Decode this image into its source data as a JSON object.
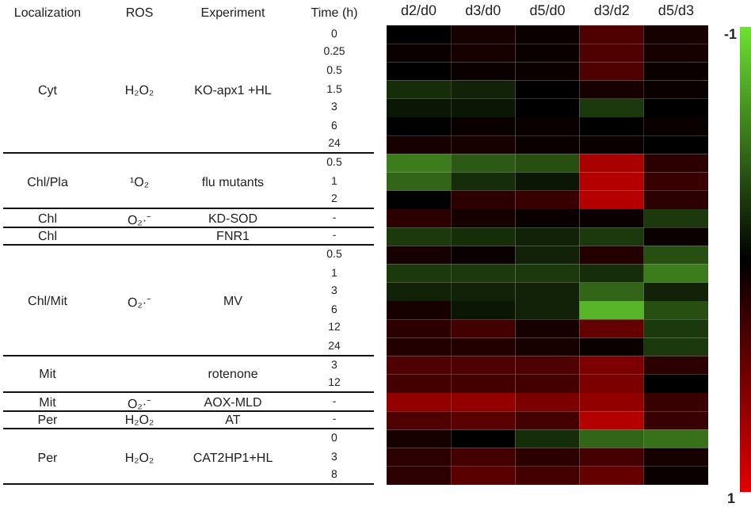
{
  "chart_data": {
    "type": "heatmap",
    "categories": [
      "d2/d0",
      "d3/d0",
      "d5/d0",
      "d3/d2",
      "d5/d3"
    ],
    "y_categories": [
      "0",
      "0.25",
      "0.5",
      "1.5",
      "3",
      "6",
      "24",
      "0.5",
      "1",
      "2",
      "-",
      "-",
      "0.5",
      "1",
      "3",
      "6",
      "12",
      "24",
      "3",
      "12",
      "-",
      "-",
      "0",
      "3",
      "8"
    ],
    "ylabel": "Time (h)",
    "annotations": [
      "Localization",
      "ROS",
      "Experiment",
      "Cyt",
      "H₂O₂",
      "KO-apx1 +HL",
      "Chl/Pla",
      "¹O₂",
      "flu mutants",
      "Chl",
      "O₂·⁻",
      "KD-SOD",
      "Chl",
      "FNR1",
      "Chl/Mit",
      "O₂·⁻",
      "MV",
      "Mit",
      "rotenone",
      "Mit",
      "O₂·⁻",
      "AOX-MLD",
      "Per",
      "H₂O₂",
      "AT",
      "Per",
      "H₂O₂",
      "CAT2HP1+HL"
    ],
    "cells": [
      [
        0,
        0.1,
        0.05,
        0.35,
        0.1
      ],
      [
        0.05,
        0.1,
        0.05,
        0.35,
        0.1
      ],
      [
        0,
        0.05,
        0.05,
        0.35,
        0.05
      ],
      [
        -0.2,
        -0.15,
        0,
        0.1,
        0.05
      ],
      [
        -0.1,
        -0.1,
        0,
        -0.25,
        0
      ],
      [
        0,
        0.05,
        0.05,
        0,
        0.05
      ],
      [
        0.1,
        0.1,
        0.05,
        0.05,
        0
      ],
      [
        -0.55,
        -0.4,
        -0.35,
        0.75,
        0.2
      ],
      [
        -0.45,
        -0.2,
        -0.1,
        0.8,
        0.25
      ],
      [
        0,
        0.2,
        0.25,
        0.8,
        0.2
      ],
      [
        0.2,
        0.1,
        0.05,
        0.05,
        -0.25
      ],
      [
        -0.25,
        -0.2,
        -0.15,
        -0.25,
        0.05
      ],
      [
        0.1,
        0.05,
        -0.15,
        0.15,
        -0.35
      ],
      [
        -0.25,
        -0.25,
        -0.25,
        -0.2,
        -0.55
      ],
      [
        -0.15,
        -0.15,
        -0.15,
        -0.45,
        -0.15
      ],
      [
        0.1,
        -0.1,
        -0.15,
        -0.8,
        -0.35
      ],
      [
        0.2,
        0.3,
        0.1,
        0.45,
        -0.25
      ],
      [
        0.15,
        0.15,
        0.1,
        0.05,
        -0.25
      ],
      [
        0.35,
        0.35,
        0.35,
        0.55,
        0.2
      ],
      [
        0.3,
        0.3,
        0.3,
        0.55,
        0
      ],
      [
        0.65,
        0.65,
        0.55,
        0.65,
        0.25
      ],
      [
        0.35,
        0.4,
        0.3,
        0.8,
        0.25
      ],
      [
        0.1,
        0,
        -0.2,
        -0.45,
        -0.5
      ],
      [
        0.2,
        0.3,
        0.2,
        0.3,
        0.1
      ],
      [
        0.2,
        0.4,
        0.3,
        0.45,
        0.05
      ]
    ],
    "clim": [
      -1,
      1
    ],
    "cticks": [
      -1,
      1
    ]
  }
}
